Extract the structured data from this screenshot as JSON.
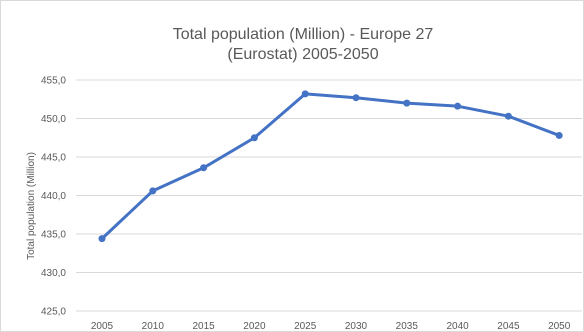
{
  "chart_data": {
    "type": "line",
    "title_lines": [
      "Total population (Million) - Europe 27",
      "(Eurostat) 2005-2050"
    ],
    "xlabel": "",
    "ylabel": "Total population (Million)",
    "categories": [
      "2005",
      "2010",
      "2015",
      "2020",
      "2025",
      "2030",
      "2035",
      "2040",
      "2045",
      "2050"
    ],
    "series": [
      {
        "values": [
          434.4,
          440.6,
          443.6,
          447.5,
          453.2,
          452.7,
          452.0,
          451.6,
          450.3,
          447.8
        ],
        "color": "#4472c4"
      }
    ],
    "y_ticks": [
      "425,0",
      "430,0",
      "435,0",
      "440,0",
      "445,0",
      "450,0",
      "455,0"
    ],
    "ylim": [
      425,
      455
    ],
    "grid": true,
    "legend": "none"
  }
}
